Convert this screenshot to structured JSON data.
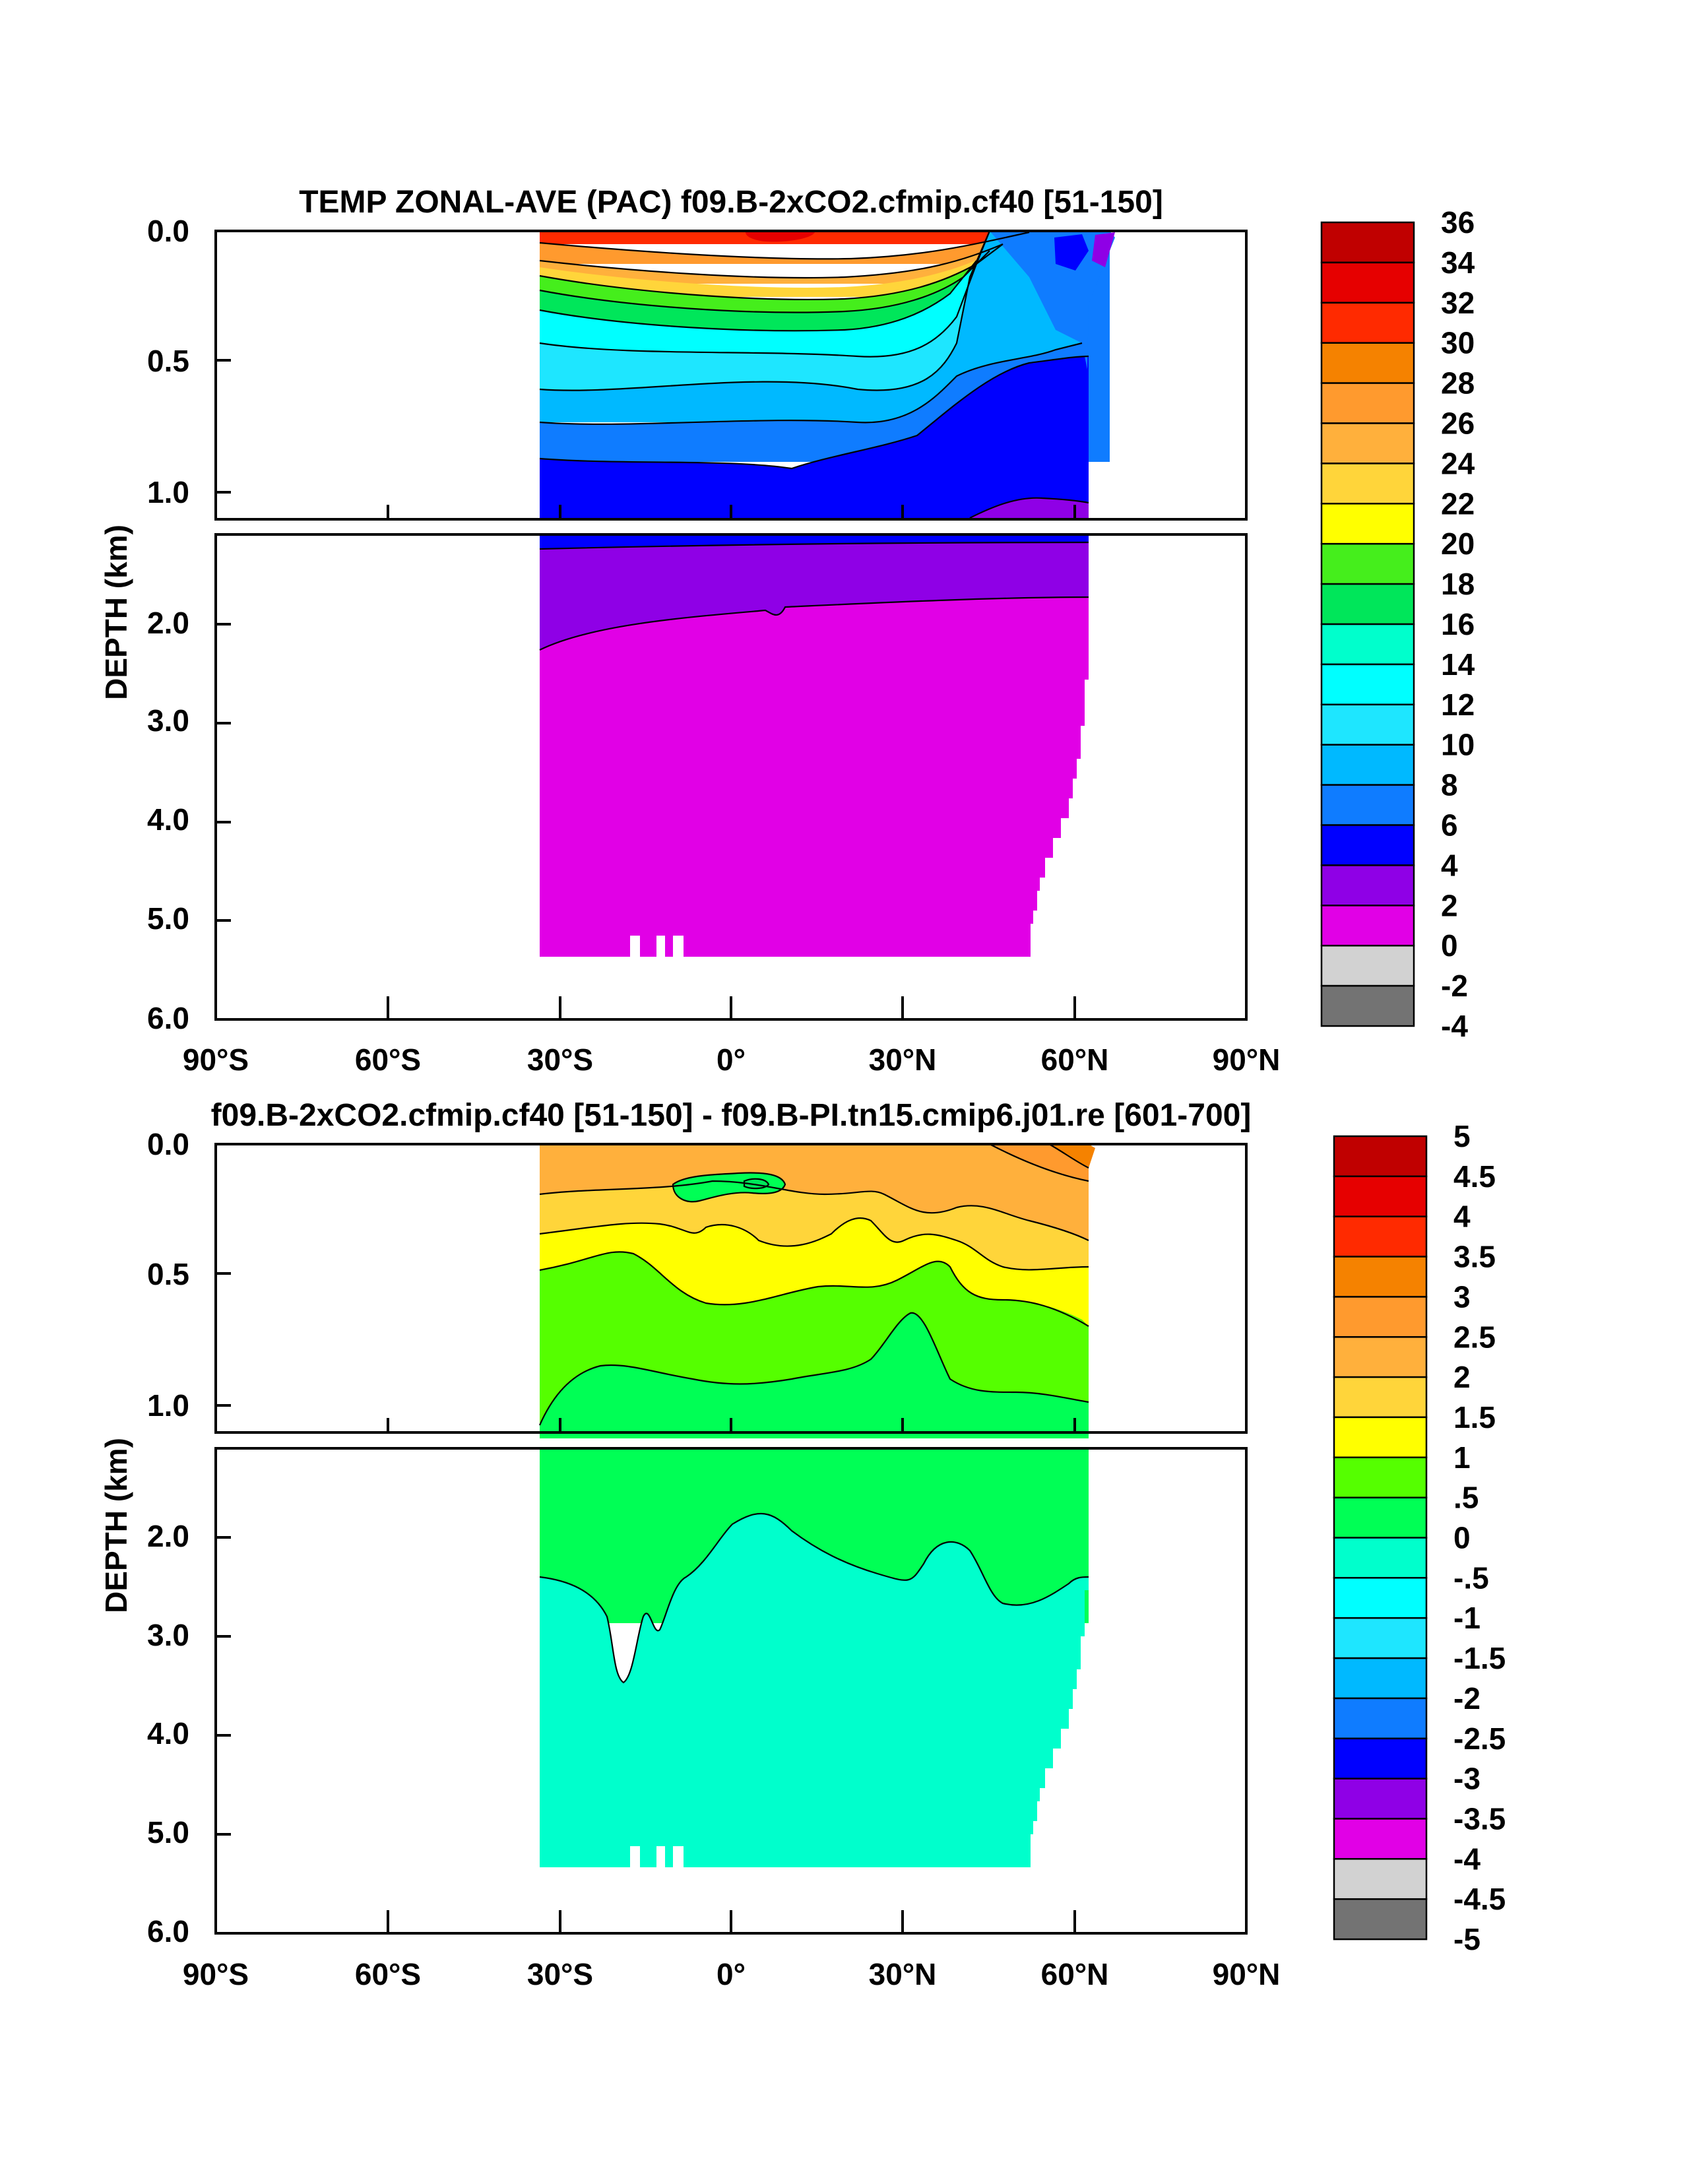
{
  "chart_data": [
    {
      "type": "heatmap",
      "title": "TEMP ZONAL-AVE (PAC) f09.B-2xCO2.cfmip.cf40 [51-150]",
      "xlabel": "",
      "ylabel": "DEPTH (km)",
      "x_ticks": [
        "90°S",
        "60°S",
        "30°S",
        "0°",
        "30°N",
        "60°N",
        "90°N"
      ],
      "y_ticks_upper": [
        "0.0",
        "0.5",
        "1.0"
      ],
      "y_ticks_lower": [
        "2.0",
        "3.0",
        "4.0",
        "5.0",
        "6.0"
      ],
      "xlim": [
        -90,
        90
      ],
      "ylim_upper_km": [
        0,
        1.1
      ],
      "ylim_lower_km": [
        1.1,
        6.0
      ],
      "data_extent": {
        "lat_min": -34,
        "lat_max": 62,
        "depth_max_km": 5.35
      },
      "colorbar": {
        "levels": [
          "36",
          "34",
          "32",
          "30",
          "28",
          "26",
          "24",
          "22",
          "20",
          "18",
          "16",
          "14",
          "12",
          "10",
          "8",
          "6",
          "4",
          "2",
          "0",
          "-2",
          "-4"
        ],
        "colors": [
          "#c00000",
          "#e60000",
          "#ff2a00",
          "#f58200",
          "#ff9a2e",
          "#ffb03c",
          "#ffd53a",
          "#ffff00",
          "#45ee1c",
          "#00e65a",
          "#00ffcc",
          "#00ffff",
          "#1ee6ff",
          "#00b9ff",
          "#0f7cff",
          "#0000ff",
          "#8f00e6",
          "#e100e6",
          "#d2d2d2",
          "#737373"
        ]
      },
      "bands_upper": [
        {
          "value": "30-32",
          "depth_km": [
            0.0,
            0.02
          ]
        },
        {
          "value": "26-28",
          "depth_km": [
            0.02,
            0.06
          ]
        },
        {
          "value": "22-24",
          "depth_km": [
            0.06,
            0.12
          ]
        },
        {
          "value": "18-20",
          "depth_km": [
            0.12,
            0.2
          ]
        },
        {
          "value": "14-16",
          "depth_km": [
            0.2,
            0.28
          ]
        },
        {
          "value": "10-12",
          "depth_km": [
            0.28,
            0.5
          ]
        },
        {
          "value": "8-10",
          "depth_km": [
            0.5,
            0.65
          ]
        },
        {
          "value": "6-8",
          "depth_km": [
            0.65,
            0.88
          ]
        },
        {
          "value": "4-6",
          "depth_km": [
            0.88,
            1.1
          ]
        }
      ],
      "bands_lower": [
        {
          "value": "2-4",
          "depth_km": [
            1.1,
            1.8
          ]
        },
        {
          "value": "0-2",
          "depth_km": [
            1.8,
            5.35
          ]
        }
      ]
    },
    {
      "type": "heatmap",
      "title": "f09.B-2xCO2.cfmip.cf40 [51-150] - f09.B-PI.tn15.cmip6.j01.re [601-700]",
      "xlabel": "",
      "ylabel": "DEPTH (km)",
      "x_ticks": [
        "90°S",
        "60°S",
        "30°S",
        "0°",
        "30°N",
        "60°N",
        "90°N"
      ],
      "y_ticks_upper": [
        "0.0",
        "0.5",
        "1.0"
      ],
      "y_ticks_lower": [
        "2.0",
        "3.0",
        "4.0",
        "5.0",
        "6.0"
      ],
      "xlim": [
        -90,
        90
      ],
      "ylim_upper_km": [
        0,
        1.1
      ],
      "ylim_lower_km": [
        1.1,
        6.0
      ],
      "data_extent": {
        "lat_min": -34,
        "lat_max": 62,
        "depth_max_km": 5.35
      },
      "colorbar": {
        "levels": [
          "5",
          "4.5",
          "4",
          "3.5",
          "3",
          "2.5",
          "2",
          "1.5",
          "1",
          ".5",
          "0",
          "-.5",
          "-1",
          "-1.5",
          "-2",
          "-2.5",
          "-3",
          "-3.5",
          "-4",
          "-4.5",
          "-5"
        ],
        "colors": [
          "#c00000",
          "#e60000",
          "#ff2a00",
          "#f58200",
          "#ff9a2e",
          "#ffb03c",
          "#ffd53a",
          "#ffff00",
          "#55ff00",
          "#00ff55",
          "#00ffcc",
          "#00ffff",
          "#1ee6ff",
          "#00b9ff",
          "#0f7cff",
          "#0000ff",
          "#8f00e6",
          "#e100e6",
          "#d2d2d2",
          "#737373"
        ]
      },
      "bands_upper": [
        {
          "value": "2.5-3",
          "depth_km": [
            0.0,
            0.15
          ]
        },
        {
          "value": "2-2.5",
          "depth_km": [
            0.15,
            0.3
          ]
        },
        {
          "value": "1.5-2",
          "depth_km": [
            0.3,
            0.55
          ]
        },
        {
          "value": "1-1.5",
          "depth_km": [
            0.55,
            0.85
          ]
        },
        {
          "value": "0.5-1",
          "depth_km": [
            0.85,
            1.1
          ]
        }
      ],
      "bands_lower": [
        {
          "value": "0.5-1",
          "depth_km": [
            1.1,
            2.6
          ]
        },
        {
          "value": "0-0.5",
          "depth_km": [
            2.6,
            5.35
          ]
        }
      ]
    }
  ]
}
